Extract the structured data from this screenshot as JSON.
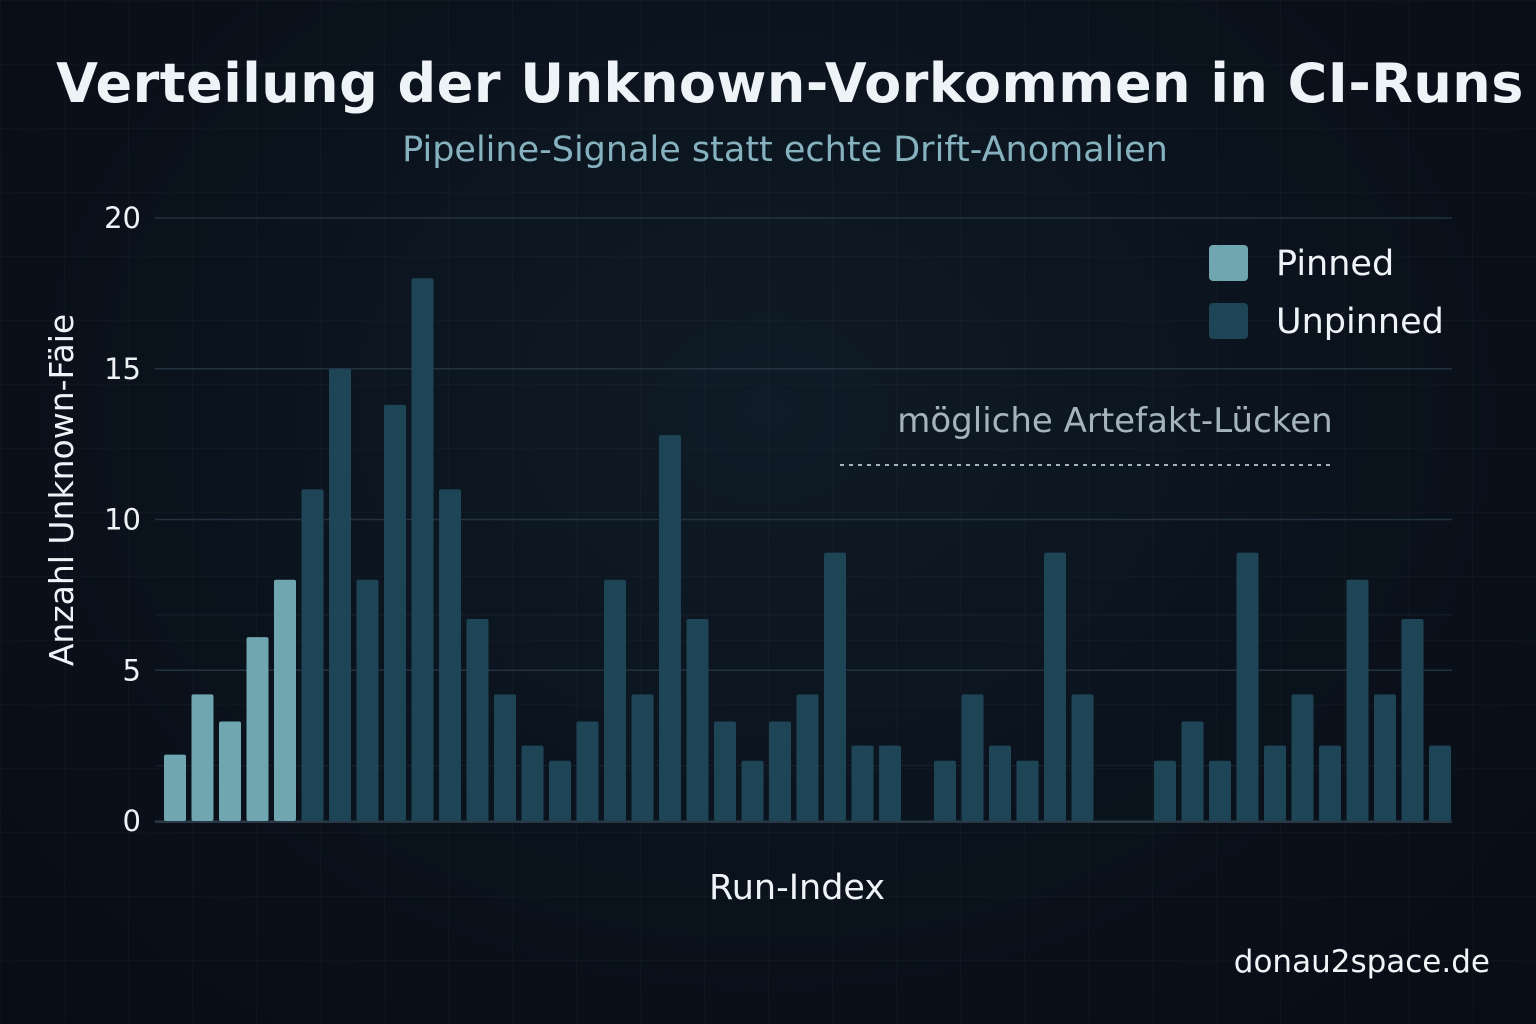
{
  "chart_data": {
    "type": "bar",
    "title": "Verteilung der Unknown-Vorkommen in CI-Runs",
    "subtitle": "Pipeline-Signale statt echte Drift-Anomalien",
    "xlabel": "Run-Index",
    "ylabel": "Anzahl Unknown-Fäie",
    "ylim": [
      0,
      20
    ],
    "yticks": [
      "20",
      "15",
      "10",
      "5",
      "0"
    ],
    "ytick_values": [
      20,
      15,
      10,
      5,
      0
    ],
    "grid": true,
    "legend_position": "top-right",
    "series": [
      {
        "name": "Pinned",
        "color": "#6fa6b0",
        "values": [
          2.2,
          4.2,
          3.3,
          6.1,
          8
        ]
      },
      {
        "name": "Unpinned",
        "color": "#1e4556",
        "values": [
          11,
          15,
          8,
          13.8,
          18,
          11,
          6.7,
          4.2,
          2.5,
          2,
          3.3,
          8,
          4.2,
          12.8,
          6.7,
          3.3,
          2,
          3.3,
          4.2,
          8.9,
          2.5,
          2.5,
          null,
          2,
          4.2,
          2.5,
          2,
          8.9,
          4.2,
          null,
          null,
          2,
          3.3,
          2,
          8.9,
          2.5,
          4.2,
          2.5,
          8,
          4.2,
          6.7,
          2.5
        ]
      }
    ],
    "annotation": "mögliche Artefakt-Lücken",
    "annotation_style": "dashed-line"
  },
  "watermark": "donau2space.de"
}
